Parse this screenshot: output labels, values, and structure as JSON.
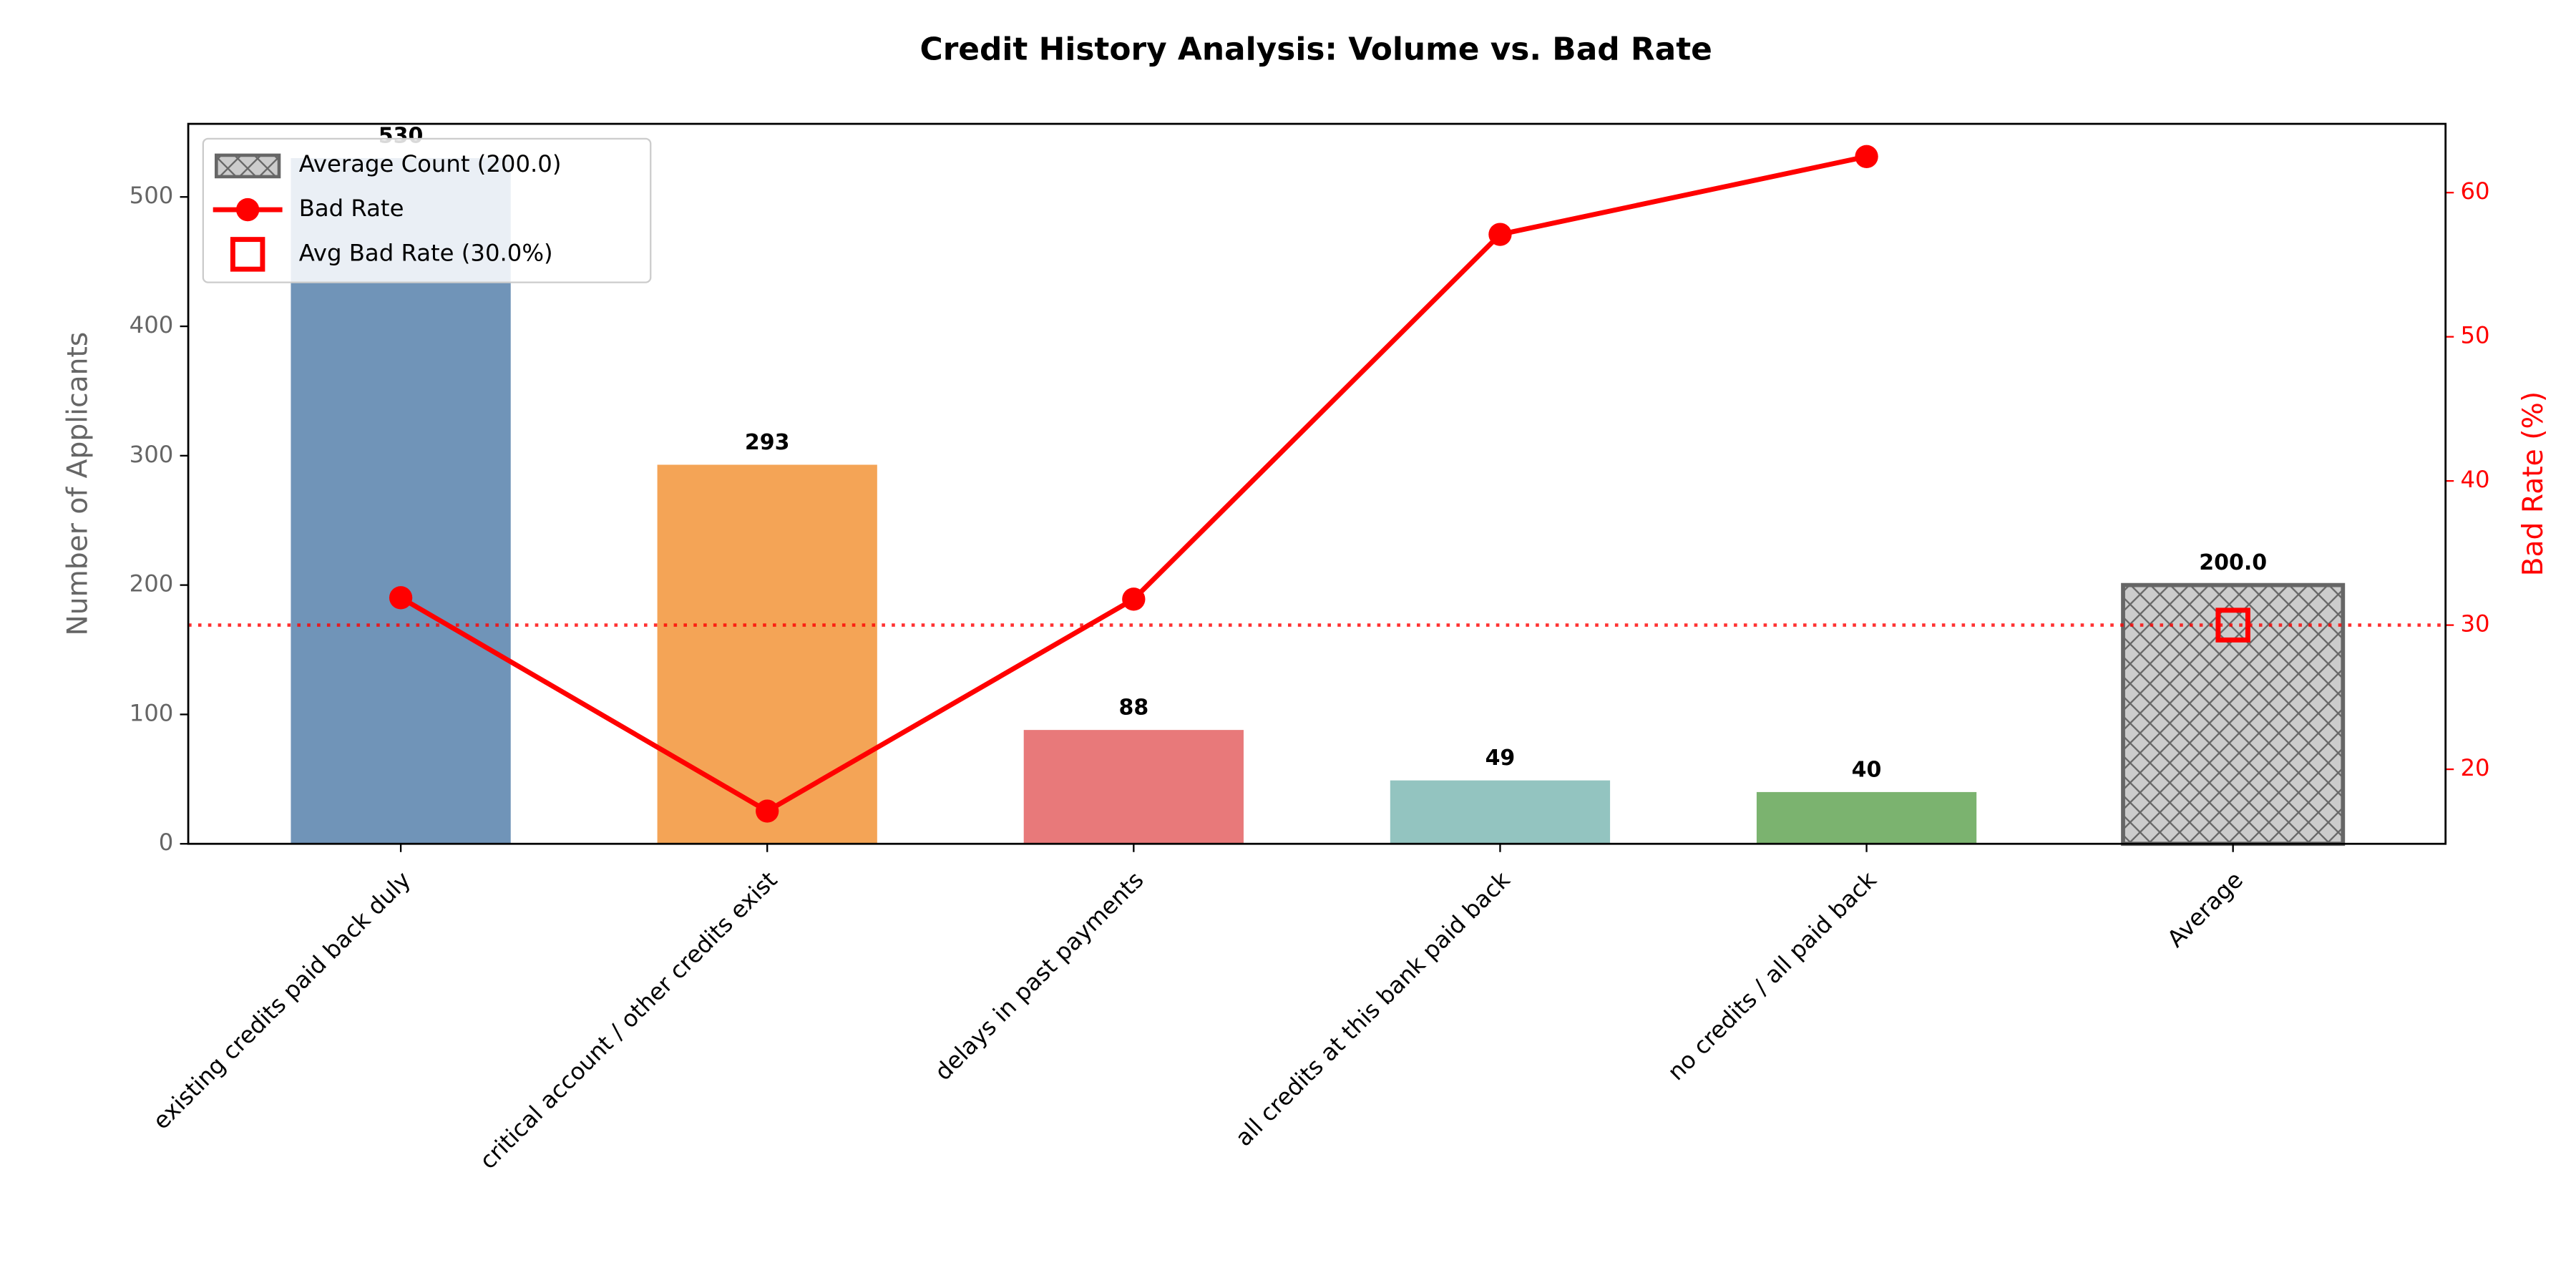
{
  "chart_data": {
    "type": "bar",
    "title": "Credit History Analysis: Volume vs. Bad Rate",
    "ylabel": "Number of Applicants",
    "y2label": "Bad Rate (%)",
    "categories": [
      "existing credits paid back duly",
      "critical account / other credits exist",
      "delays in past payments",
      "all credits at this bank paid back",
      "no credits / all paid back",
      "Average"
    ],
    "bar_values": [
      530,
      293,
      88,
      49,
      40,
      200.0
    ],
    "value_labels": [
      "530",
      "293",
      "88",
      "49",
      "40",
      "200.0"
    ],
    "bar_colors": [
      "#7094b8",
      "#f4a456",
      "#e8797a",
      "#93c4c0",
      "#7bb36f",
      "#cccccc"
    ],
    "average_bar_name": "Average Count (200.0)",
    "line": {
      "name": "Bad Rate",
      "color": "#ff0000",
      "axis": "y2",
      "values": [
        31.9,
        17.1,
        31.8,
        57.1,
        62.5,
        null
      ]
    },
    "reference": {
      "name": "Avg Bad Rate (30.0%)",
      "value": 30.0,
      "color": "#ff0000"
    },
    "ylim": [
      0,
      556.5
    ],
    "yticks": [
      0,
      100,
      200,
      300,
      400,
      500
    ],
    "y2lim": [
      14.83,
      64.77
    ],
    "y2ticks": [
      20,
      30,
      40,
      50,
      60
    ],
    "legend": "upper left"
  }
}
